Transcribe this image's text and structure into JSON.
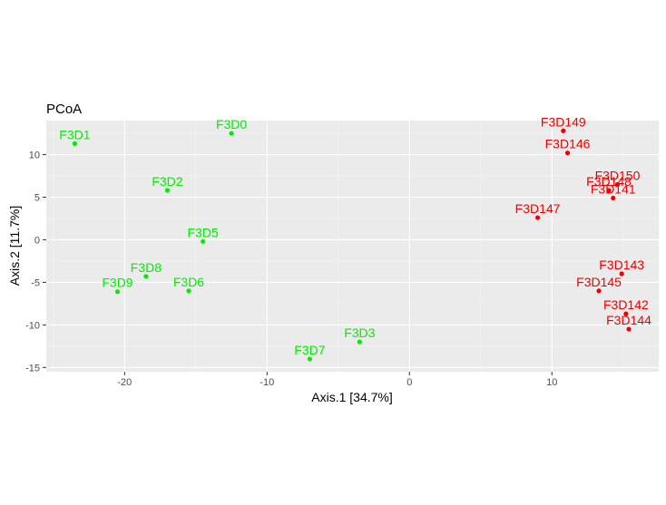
{
  "chart_data": {
    "type": "scatter",
    "title": "PCoA",
    "xlabel": "Axis.1   [34.7%]",
    "ylabel": "Axis.2   [11.7%]",
    "xlim": [
      -25.5,
      17.5
    ],
    "ylim": [
      -15.5,
      14.0
    ],
    "x_ticks": [
      -20,
      -10,
      0,
      10
    ],
    "x_tick_labels": [
      "-20",
      "-10",
      "0",
      "10"
    ],
    "y_ticks": [
      -15,
      -10,
      -5,
      0,
      5,
      10
    ],
    "y_tick_labels": [
      "-15",
      "-10",
      "-5",
      "0",
      "5",
      "10"
    ],
    "grid": true,
    "series": [
      {
        "color": "#00ee00",
        "points": [
          {
            "label": "F3D0",
            "x": -12.5,
            "y": 12.5
          },
          {
            "label": "F3D1",
            "x": -23.5,
            "y": 11.3
          },
          {
            "label": "F3D2",
            "x": -17.0,
            "y": 5.8
          },
          {
            "label": "F3D5",
            "x": -14.5,
            "y": -0.2
          },
          {
            "label": "F3D8",
            "x": -18.5,
            "y": -4.3
          },
          {
            "label": "F3D6",
            "x": -15.5,
            "y": -6.0
          },
          {
            "label": "F3D9",
            "x": -20.5,
            "y": -6.1
          },
          {
            "label": "F3D3",
            "x": -3.5,
            "y": -12.0
          },
          {
            "label": "F3D7",
            "x": -7.0,
            "y": -14.0
          }
        ]
      },
      {
        "color": "#ee0000",
        "points": [
          {
            "label": "F3D149",
            "x": 10.8,
            "y": 12.8
          },
          {
            "label": "F3D146",
            "x": 11.1,
            "y": 10.2
          },
          {
            "label": "F3D150",
            "x": 14.6,
            "y": 6.5
          },
          {
            "label": "F3D148",
            "x": 14.0,
            "y": 5.8
          },
          {
            "label": "F3D141",
            "x": 14.3,
            "y": 4.9
          },
          {
            "label": "F3D147",
            "x": 9.0,
            "y": 2.6
          },
          {
            "label": "F3D143",
            "x": 14.9,
            "y": -4.0
          },
          {
            "label": "F3D145",
            "x": 13.3,
            "y": -6.0
          },
          {
            "label": "F3D142",
            "x": 15.2,
            "y": -8.7
          },
          {
            "label": "F3D144",
            "x": 15.4,
            "y": -10.5
          }
        ]
      }
    ]
  }
}
